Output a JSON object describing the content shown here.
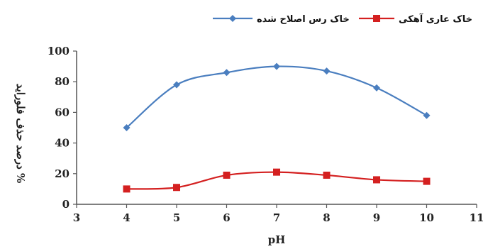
{
  "chart_data": {
    "type": "line",
    "title": "",
    "xlabel": "pH",
    "ylabel": "درصد حذف فلوراید %",
    "xlim": [
      3,
      11
    ],
    "ylim": [
      0,
      100
    ],
    "x_ticks": [
      3,
      4,
      5,
      6,
      7,
      8,
      9,
      10,
      11
    ],
    "y_ticks": [
      0,
      20,
      40,
      60,
      80,
      100
    ],
    "grid": false,
    "legend_position": "top",
    "series": [
      {
        "name": "خاک رس اصلاح شده",
        "color": "#4a7ebf",
        "marker": "diamond",
        "x": [
          4,
          5,
          6,
          7,
          8,
          9,
          10
        ],
        "y": [
          50,
          78,
          86,
          90,
          87,
          76,
          58
        ]
      },
      {
        "name": "خاک عاری آهکی",
        "color": "#d42020",
        "marker": "square",
        "x": [
          4,
          5,
          6,
          7,
          8,
          9,
          10
        ],
        "y": [
          10,
          11,
          19,
          21,
          19,
          16,
          15
        ]
      }
    ]
  }
}
